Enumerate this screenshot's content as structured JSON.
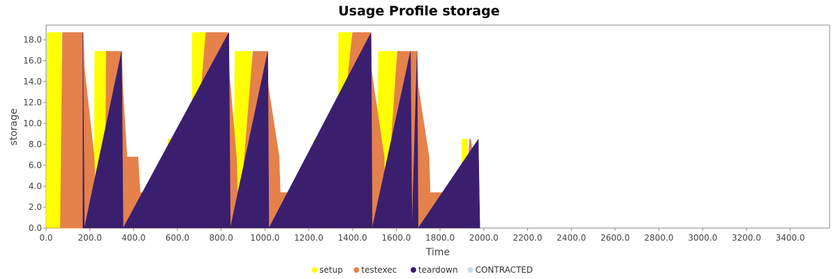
{
  "chart_data": {
    "type": "area",
    "title": "Usage Profile storage",
    "xlabel": "Time",
    "ylabel": "storage",
    "xlim": [
      0,
      3580
    ],
    "ylim": [
      0,
      19.4
    ],
    "x_ticks": [
      "0.0",
      "200.0",
      "400.0",
      "600.0",
      "800.0",
      "1000.0",
      "1200.0",
      "1400.0",
      "1600.0",
      "1800.0",
      "2000.0",
      "2200.0",
      "2400.0",
      "2600.0",
      "2800.0",
      "3000.0",
      "3200.0",
      "3400.0"
    ],
    "y_ticks": [
      "0.0",
      "2.0",
      "4.0",
      "6.0",
      "8.0",
      "10.0",
      "12.0",
      "14.0",
      "16.0",
      "18.0"
    ],
    "grid": false,
    "legend_position": "bottom",
    "series": [
      {
        "name": "setup",
        "color": "#ffff00",
        "x": [
          0,
          5,
          70,
          75,
          218,
          222,
          280,
          290,
          553,
          557,
          615,
          620,
          665,
          668,
          730,
          735,
          858,
          862,
          938,
          945,
          1220,
          1225,
          1258,
          1262,
          1334,
          1336,
          1395,
          1400,
          1513,
          1518,
          1600,
          1605,
          1895,
          1900,
          1925,
          1930
        ],
        "y": [
          0,
          18.7,
          18.7,
          0,
          0,
          16.9,
          16.9,
          0,
          0,
          8.5,
          8.5,
          0,
          0,
          18.7,
          18.7,
          0,
          0,
          16.9,
          16.9,
          0,
          0,
          8.5,
          8.5,
          0,
          0,
          18.7,
          18.7,
          0,
          0,
          16.9,
          16.9,
          0,
          0,
          8.5,
          8.5,
          0
        ]
      },
      {
        "name": "testexec",
        "color": "#e5814a",
        "x": [
          0,
          65,
          75,
          100,
          170,
          175,
          220,
          225,
          270,
          275,
          300,
          345,
          350,
          370,
          420,
          430,
          570,
          575,
          620,
          625,
          650,
          655,
          730,
          750,
          830,
          835,
          870,
          880,
          945,
          960,
          1010,
          1015,
          1065,
          1070,
          1220,
          1228,
          1265,
          1270,
          1295,
          1305,
          1400,
          1415,
          1480,
          1485,
          1545,
          1550,
          1605,
          1625,
          1695,
          1700,
          1750,
          1755,
          1900,
          1905,
          1935,
          1940,
          1965,
          1975
        ],
        "y": [
          0,
          0,
          18.7,
          18.7,
          18.7,
          15.3,
          6.8,
          3.4,
          3.4,
          16.9,
          16.9,
          16.9,
          13.6,
          6.8,
          6.8,
          3.4,
          3.4,
          0,
          0,
          8.5,
          8.5,
          0,
          18.7,
          18.7,
          18.7,
          15.3,
          6.8,
          0,
          16.9,
          16.9,
          16.9,
          13.6,
          6.8,
          3.4,
          3.4,
          0,
          8.5,
          8.5,
          6.8,
          0,
          18.7,
          18.7,
          18.7,
          15.3,
          6.8,
          0,
          16.9,
          16.9,
          16.9,
          13.6,
          6.8,
          3.4,
          3.4,
          0,
          8.5,
          8.5,
          5.1,
          0
        ]
      },
      {
        "name": "teardown",
        "color": "#3a1f6e",
        "x": [
          168,
          175,
          345,
          352,
          835,
          842,
          1013,
          1018,
          1485,
          1490,
          1665,
          1672,
          1695,
          1700,
          1975,
          1982
        ],
        "y": [
          18.7,
          0,
          16.9,
          0,
          18.7,
          0,
          16.9,
          0,
          18.7,
          0,
          16.9,
          0,
          16.9,
          0,
          8.5,
          0
        ]
      },
      {
        "name": "CONTRACTED",
        "color": "#c8dcf0",
        "x": [],
        "y": []
      }
    ]
  }
}
